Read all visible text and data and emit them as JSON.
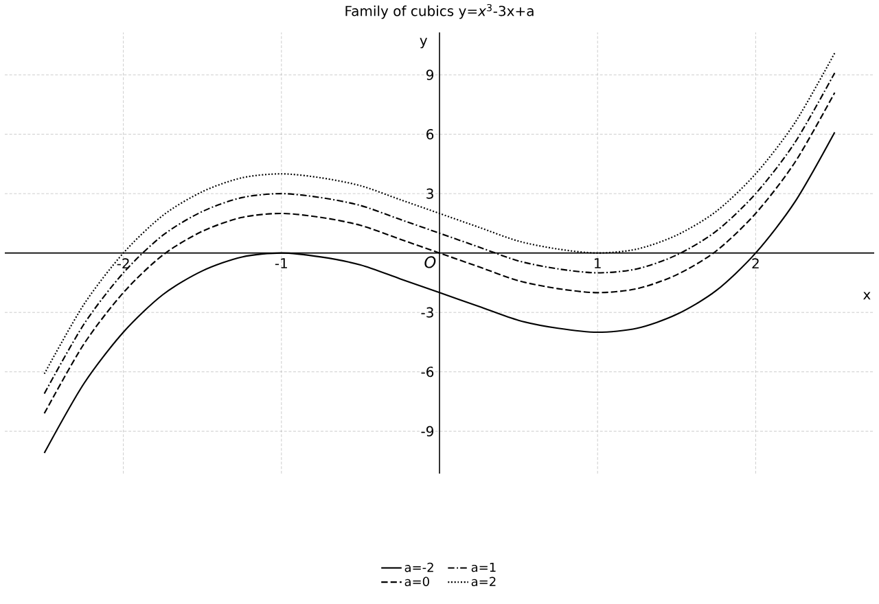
{
  "chart_data": {
    "type": "line",
    "title": "Family of cubics y=*x*$^{3}$-3x+a",
    "xlabel": "x",
    "ylabel": "y",
    "annotations": [
      "O"
    ],
    "x": [
      -2.5,
      -2.25,
      -2,
      -1.75,
      -1.5,
      -1.25,
      -1,
      -0.75,
      -0.5,
      -0.25,
      0,
      0.25,
      0.5,
      0.75,
      1,
      1.25,
      1.5,
      1.75,
      2,
      2.25,
      2.5
    ],
    "series": [
      {
        "name": "a=-2",
        "color": "#000000",
        "line_style": "solid",
        "values": [
          -10.1,
          -6.6,
          -4,
          -2.1,
          -0.9,
          -0.2,
          0,
          -0.2,
          -0.6,
          -1.3,
          -2,
          -2.7,
          -3.4,
          -3.8,
          -4,
          -3.8,
          -3.1,
          -1.9,
          0,
          2.6,
          6.1
        ]
      },
      {
        "name": "a=0",
        "color": "#000000",
        "line_style": "dashed",
        "values": [
          -8.1,
          -4.6,
          -2,
          -0.1,
          1.1,
          1.8,
          2,
          1.8,
          1.4,
          0.7,
          0,
          -0.7,
          -1.4,
          -1.8,
          -2,
          -1.8,
          -1.1,
          0.1,
          2,
          4.6,
          8.1
        ]
      },
      {
        "name": "a=1",
        "color": "#000000",
        "line_style": "dashdot",
        "values": [
          -7.1,
          -3.6,
          -1,
          0.9,
          2.1,
          2.8,
          3,
          2.8,
          2.4,
          1.7,
          1,
          0.3,
          -0.4,
          -0.8,
          -1,
          -0.8,
          -0.1,
          1.1,
          3,
          5.6,
          9.1
        ]
      },
      {
        "name": "a=2",
        "color": "#000000",
        "line_style": "dotted",
        "values": [
          -6.1,
          -2.6,
          0,
          1.9,
          3.1,
          3.8,
          4,
          3.8,
          3.4,
          2.7,
          2,
          1.3,
          0.6,
          0.2,
          0,
          0.2,
          0.9,
          2.1,
          4,
          6.6,
          10.1
        ]
      }
    ],
    "xlim": [
      -2.75,
      2.75
    ],
    "ylim": [
      -11.14,
      11.14
    ],
    "xticks": [
      -2,
      -1,
      1,
      2
    ],
    "yticks": [
      -9,
      -6,
      -3,
      3,
      6,
      9
    ],
    "grid": true,
    "legend": "bottom"
  }
}
